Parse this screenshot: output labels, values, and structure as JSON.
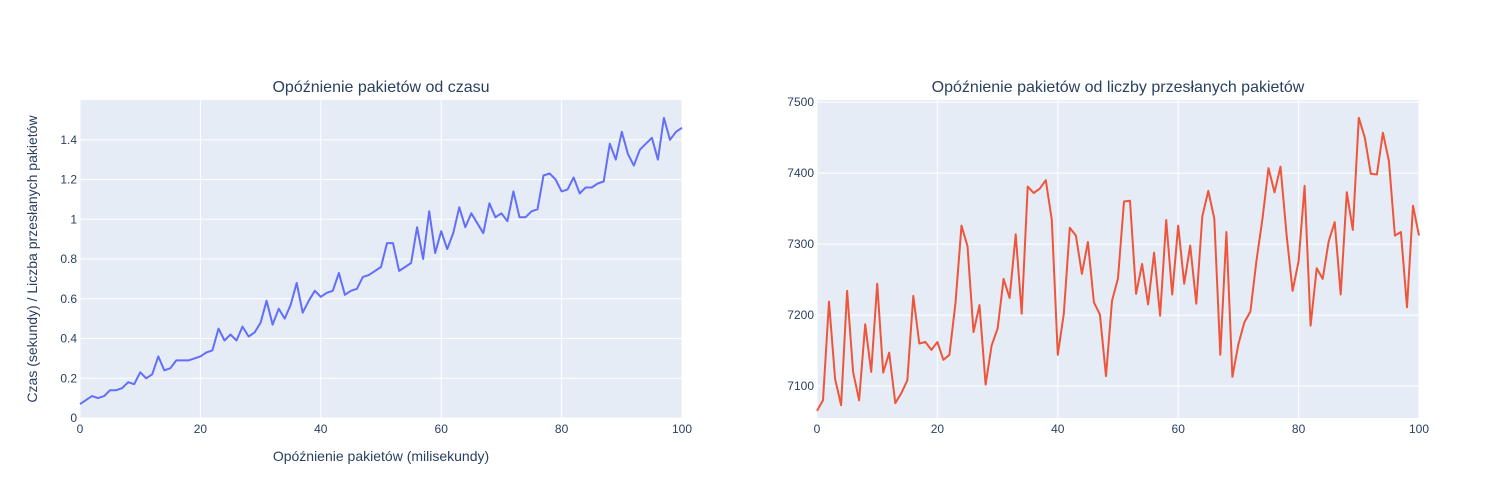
{
  "chart_data": [
    {
      "type": "line",
      "title": "Opóźnienie pakietów od czasu",
      "xlabel": "Opóźnienie pakietów (milisekundy)",
      "ylabel": "Czas (sekundy) / Liczba przesłanych pakietów",
      "xlim": [
        0,
        100
      ],
      "ylim": [
        0,
        1.6
      ],
      "xticks": [
        0,
        20,
        40,
        60,
        80,
        100
      ],
      "xtick_labels": [
        "0",
        "20",
        "40",
        "60",
        "80",
        "100"
      ],
      "yticks": [
        0,
        0.2,
        0.4,
        0.6,
        0.8,
        1,
        1.2,
        1.4
      ],
      "ytick_labels": [
        "0",
        "0.2",
        "0.4",
        "0.6",
        "0.8",
        "1",
        "1.2",
        "1.4"
      ],
      "grid": true,
      "line_color": "#636efa",
      "x": [
        0,
        1,
        2,
        3,
        4,
        5,
        6,
        7,
        8,
        9,
        10,
        11,
        12,
        13,
        14,
        15,
        16,
        17,
        18,
        19,
        20,
        21,
        22,
        23,
        24,
        25,
        26,
        27,
        28,
        29,
        30,
        31,
        32,
        33,
        34,
        35,
        36,
        37,
        38,
        39,
        40,
        41,
        42,
        43,
        44,
        45,
        46,
        47,
        48,
        49,
        50,
        51,
        52,
        53,
        54,
        55,
        56,
        57,
        58,
        59,
        60,
        61,
        62,
        63,
        64,
        65,
        66,
        67,
        68,
        69,
        70,
        71,
        72,
        73,
        74,
        75,
        76,
        77,
        78,
        79,
        80,
        81,
        82,
        83,
        84,
        85,
        86,
        87,
        88,
        89,
        90,
        91,
        92,
        93,
        94,
        95,
        96,
        97,
        98,
        99,
        100
      ],
      "y": [
        0.07,
        0.09,
        0.11,
        0.1,
        0.11,
        0.14,
        0.14,
        0.15,
        0.18,
        0.17,
        0.23,
        0.2,
        0.22,
        0.31,
        0.24,
        0.25,
        0.29,
        0.29,
        0.29,
        0.3,
        0.31,
        0.33,
        0.34,
        0.45,
        0.39,
        0.42,
        0.39,
        0.46,
        0.41,
        0.43,
        0.48,
        0.59,
        0.47,
        0.55,
        0.5,
        0.57,
        0.68,
        0.53,
        0.59,
        0.64,
        0.61,
        0.63,
        0.64,
        0.73,
        0.62,
        0.64,
        0.65,
        0.71,
        0.72,
        0.74,
        0.76,
        0.88,
        0.88,
        0.74,
        0.76,
        0.78,
        0.96,
        0.8,
        1.04,
        0.83,
        0.94,
        0.85,
        0.93,
        1.06,
        0.96,
        1.03,
        0.98,
        0.93,
        1.08,
        1.01,
        1.03,
        0.99,
        1.14,
        1.01,
        1.01,
        1.04,
        1.05,
        1.22,
        1.23,
        1.2,
        1.14,
        1.15,
        1.21,
        1.13,
        1.16,
        1.16,
        1.18,
        1.19,
        1.38,
        1.3,
        1.44,
        1.33,
        1.27,
        1.35,
        1.38,
        1.41,
        1.3,
        1.51,
        1.4,
        1.44,
        1.46
      ]
    },
    {
      "type": "line",
      "title": "Opóźnienie pakietów od liczby przesłanych pakietów",
      "xlabel": "",
      "ylabel": "",
      "xlim": [
        0,
        100
      ],
      "ylim": [
        7055,
        7503
      ],
      "xticks": [
        0,
        20,
        40,
        60,
        80,
        100
      ],
      "xtick_labels": [
        "0",
        "20",
        "40",
        "60",
        "80",
        "100"
      ],
      "yticks": [
        7100,
        7200,
        7300,
        7400,
        7500
      ],
      "ytick_labels": [
        "7100",
        "7200",
        "7300",
        "7400",
        "7500"
      ],
      "grid": true,
      "line_color": "#ef553b",
      "x": [
        0,
        1,
        2,
        3,
        4,
        5,
        6,
        7,
        8,
        9,
        10,
        11,
        12,
        13,
        14,
        15,
        16,
        17,
        18,
        19,
        20,
        21,
        22,
        23,
        24,
        25,
        26,
        27,
        28,
        29,
        30,
        31,
        32,
        33,
        34,
        35,
        36,
        37,
        38,
        39,
        40,
        41,
        42,
        43,
        44,
        45,
        46,
        47,
        48,
        49,
        50,
        51,
        52,
        53,
        54,
        55,
        56,
        57,
        58,
        59,
        60,
        61,
        62,
        63,
        64,
        65,
        66,
        67,
        68,
        69,
        70,
        71,
        72,
        73,
        74,
        75,
        76,
        77,
        78,
        79,
        80,
        81,
        82,
        83,
        84,
        85,
        86,
        87,
        88,
        89,
        90,
        91,
        92,
        93,
        94,
        95,
        96,
        97,
        98,
        99,
        100
      ],
      "y": [
        7065,
        7080,
        7219,
        7110,
        7073,
        7234,
        7120,
        7080,
        7187,
        7120,
        7244,
        7119,
        7147,
        7076,
        7090,
        7108,
        7227,
        7160,
        7162,
        7151,
        7162,
        7137,
        7144,
        7217,
        7326,
        7297,
        7176,
        7214,
        7102,
        7157,
        7181,
        7251,
        7224,
        7314,
        7202,
        7381,
        7372,
        7378,
        7390,
        7334,
        7144,
        7202,
        7323,
        7312,
        7258,
        7303,
        7218,
        7201,
        7114,
        7220,
        7252,
        7360,
        7361,
        7230,
        7272,
        7215,
        7288,
        7199,
        7334,
        7229,
        7326,
        7244,
        7298,
        7216,
        7339,
        7375,
        7336,
        7144,
        7317,
        7113,
        7159,
        7190,
        7205,
        7277,
        7336,
        7407,
        7373,
        7409,
        7313,
        7234,
        7276,
        7382,
        7185,
        7266,
        7251,
        7304,
        7331,
        7229,
        7373,
        7320,
        7478,
        7450,
        7399,
        7398,
        7457,
        7417,
        7312,
        7317,
        7211,
        7354,
        7312
      ]
    }
  ]
}
